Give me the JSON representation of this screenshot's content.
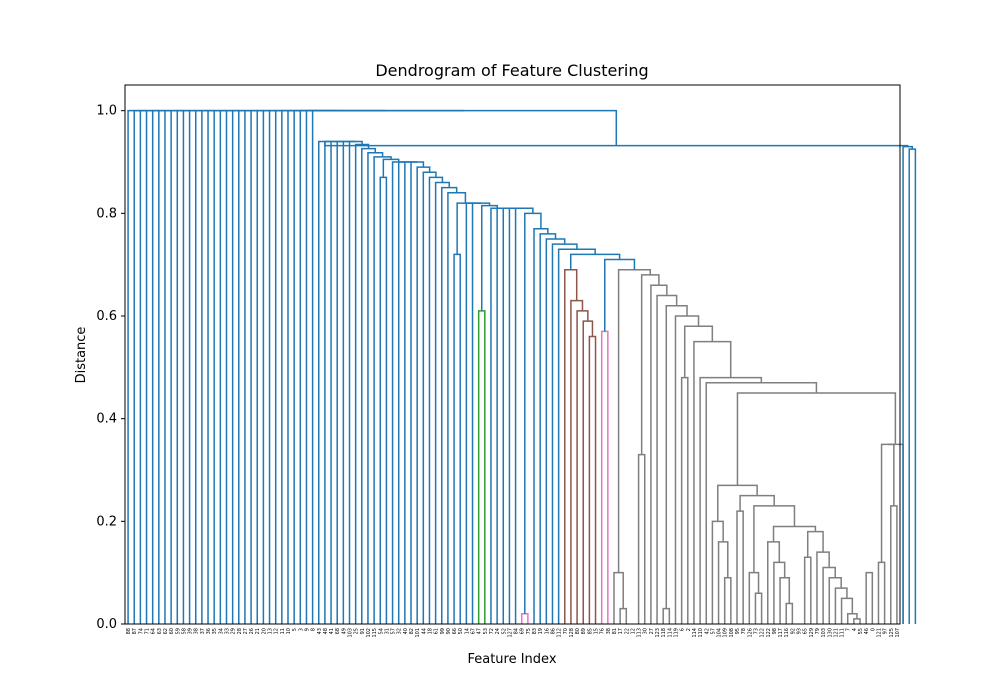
{
  "chart_data": {
    "type": "dendrogram",
    "title": "Dendrogram of Feature Clustering",
    "xlabel": "Feature Index",
    "ylabel": "Distance",
    "ylim": [
      0,
      1.05
    ],
    "yticks": [
      "0.0",
      "0.2",
      "0.4",
      "0.6",
      "0.8",
      "1.0"
    ],
    "grid": false,
    "colors": {
      "blue": "#1f77b4",
      "green": "#2ca02c",
      "brown": "#8c564b",
      "pink": "#e377c2",
      "gray": "#7f7f7f"
    },
    "leaves": [
      "88",
      "87",
      "74",
      "71",
      "64",
      "63",
      "62",
      "60",
      "59",
      "58",
      "39",
      "38",
      "37",
      "36",
      "35",
      "34",
      "33",
      "29",
      "28",
      "27",
      "26",
      "21",
      "20",
      "13",
      "12",
      "11",
      "10",
      "5",
      "3",
      "9",
      "8",
      "43",
      "48",
      "41",
      "68",
      "49",
      "103",
      "25",
      "91",
      "102",
      "115",
      "54",
      "31",
      "57",
      "32",
      "40",
      "82",
      "101",
      "44",
      "18",
      "61",
      "99",
      "90",
      "66",
      "50",
      "14",
      "67",
      "47",
      "53",
      "72",
      "24",
      "52",
      "127",
      "84",
      "69",
      "75",
      "83",
      "19",
      "16",
      "86",
      "112",
      "70",
      "128",
      "80",
      "89",
      "85",
      "15",
      "76",
      "38",
      "81",
      "17",
      "22",
      "12",
      "113",
      "30",
      "27",
      "123",
      "118",
      "114",
      "119",
      "6",
      "2",
      "114",
      "110",
      "42",
      "57",
      "104",
      "109",
      "108",
      "95",
      "78",
      "126",
      "73",
      "122",
      "122",
      "98",
      "117",
      "116",
      "92",
      "93",
      "65",
      "129",
      "79",
      "103",
      "130",
      "121",
      "111",
      "7",
      "4",
      "55",
      "46",
      "0",
      "121",
      "97",
      "125",
      "107"
    ]
  }
}
